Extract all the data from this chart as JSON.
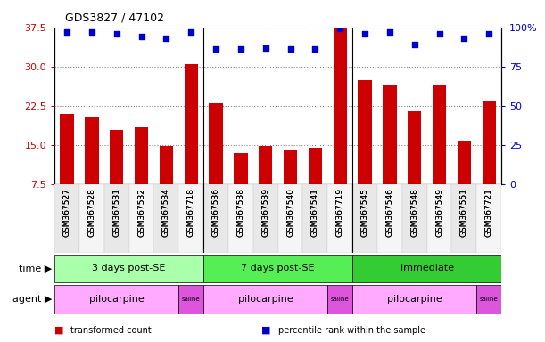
{
  "title": "GDS3827 / 47102",
  "samples": [
    "GSM367527",
    "GSM367528",
    "GSM367531",
    "GSM367532",
    "GSM367534",
    "GSM367718",
    "GSM367536",
    "GSM367538",
    "GSM367539",
    "GSM367540",
    "GSM367541",
    "GSM367719",
    "GSM367545",
    "GSM367546",
    "GSM367548",
    "GSM367549",
    "GSM367551",
    "GSM367721"
  ],
  "bar_values": [
    21.0,
    20.5,
    18.0,
    18.5,
    14.8,
    30.5,
    23.0,
    13.5,
    14.8,
    14.2,
    14.5,
    37.2,
    27.5,
    26.5,
    21.5,
    26.5,
    15.8,
    23.5
  ],
  "dot_values": [
    97,
    97,
    96,
    94,
    93,
    97,
    86,
    86,
    87,
    86,
    86,
    99,
    96,
    97,
    89,
    96,
    93,
    96
  ],
  "ylim_left": [
    7.5,
    37.5
  ],
  "ylim_right": [
    0,
    100
  ],
  "yticks_left": [
    7.5,
    15.0,
    22.5,
    30.0,
    37.5
  ],
  "yticks_right": [
    0,
    25,
    50,
    75,
    100
  ],
  "bar_color": "#cc0000",
  "dot_color": "#0000cc",
  "grid_color": "#888888",
  "bg_color": "#ffffff",
  "time_groups": [
    {
      "label": "3 days post-SE",
      "start": 0,
      "end": 6,
      "color": "#aaffaa"
    },
    {
      "label": "7 days post-SE",
      "start": 6,
      "end": 12,
      "color": "#55ee55"
    },
    {
      "label": "immediate",
      "start": 12,
      "end": 18,
      "color": "#33cc33"
    }
  ],
  "agent_groups": [
    {
      "label": "pilocarpine",
      "start": 0,
      "end": 5,
      "color": "#ffaaff"
    },
    {
      "label": "saline",
      "start": 5,
      "end": 6,
      "color": "#dd55dd"
    },
    {
      "label": "pilocarpine",
      "start": 6,
      "end": 11,
      "color": "#ffaaff"
    },
    {
      "label": "saline",
      "start": 11,
      "end": 12,
      "color": "#dd55dd"
    },
    {
      "label": "pilocarpine",
      "start": 12,
      "end": 17,
      "color": "#ffaaff"
    },
    {
      "label": "saline",
      "start": 17,
      "end": 18,
      "color": "#dd55dd"
    }
  ],
  "legend_items": [
    {
      "label": "transformed count",
      "color": "#cc0000"
    },
    {
      "label": "percentile rank within the sample",
      "color": "#0000cc"
    }
  ],
  "group_separators": [
    5.5,
    11.5
  ]
}
